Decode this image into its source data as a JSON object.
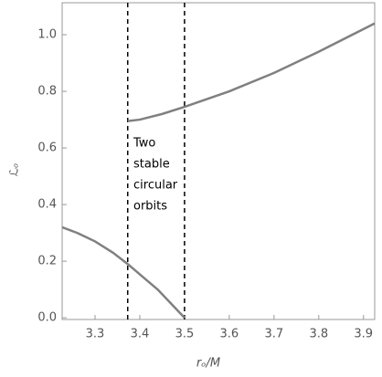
{
  "chart_data": {
    "type": "line",
    "xlabel": "rₒ/M",
    "ylabel": "ℒₒ",
    "xlim": [
      3.2265,
      3.925
    ],
    "ylim": [
      -0.006,
      1.113
    ],
    "xticks": [
      3.3,
      3.4,
      3.5,
      3.6,
      3.7,
      3.8,
      3.9
    ],
    "yticks": [
      {
        "value": 0,
        "label": "0.0"
      },
      0.2,
      0.4,
      0.6,
      0.8,
      {
        "value": 1,
        "label": "1.0"
      }
    ],
    "vlines": [
      3.373,
      3.5
    ],
    "annotation": [
      "Two",
      "stable",
      "circular",
      "orbits"
    ],
    "series": [
      {
        "color": "#808080",
        "x": [
          3.2265,
          3.26,
          3.3,
          3.34,
          3.373,
          3.41,
          3.44,
          3.47,
          3.5
        ],
        "values": [
          0.32,
          0.3,
          0.27,
          0.23,
          0.19,
          0.14,
          0.1,
          0.05,
          0
        ]
      },
      {
        "color": "#808080",
        "x": [
          3.373,
          3.4,
          3.45,
          3.5,
          3.6,
          3.7,
          3.8,
          3.9,
          3.925
        ],
        "values": [
          0.695,
          0.7,
          0.72,
          0.745,
          0.8,
          0.865,
          0.94,
          1.02,
          1.04
        ]
      }
    ]
  }
}
